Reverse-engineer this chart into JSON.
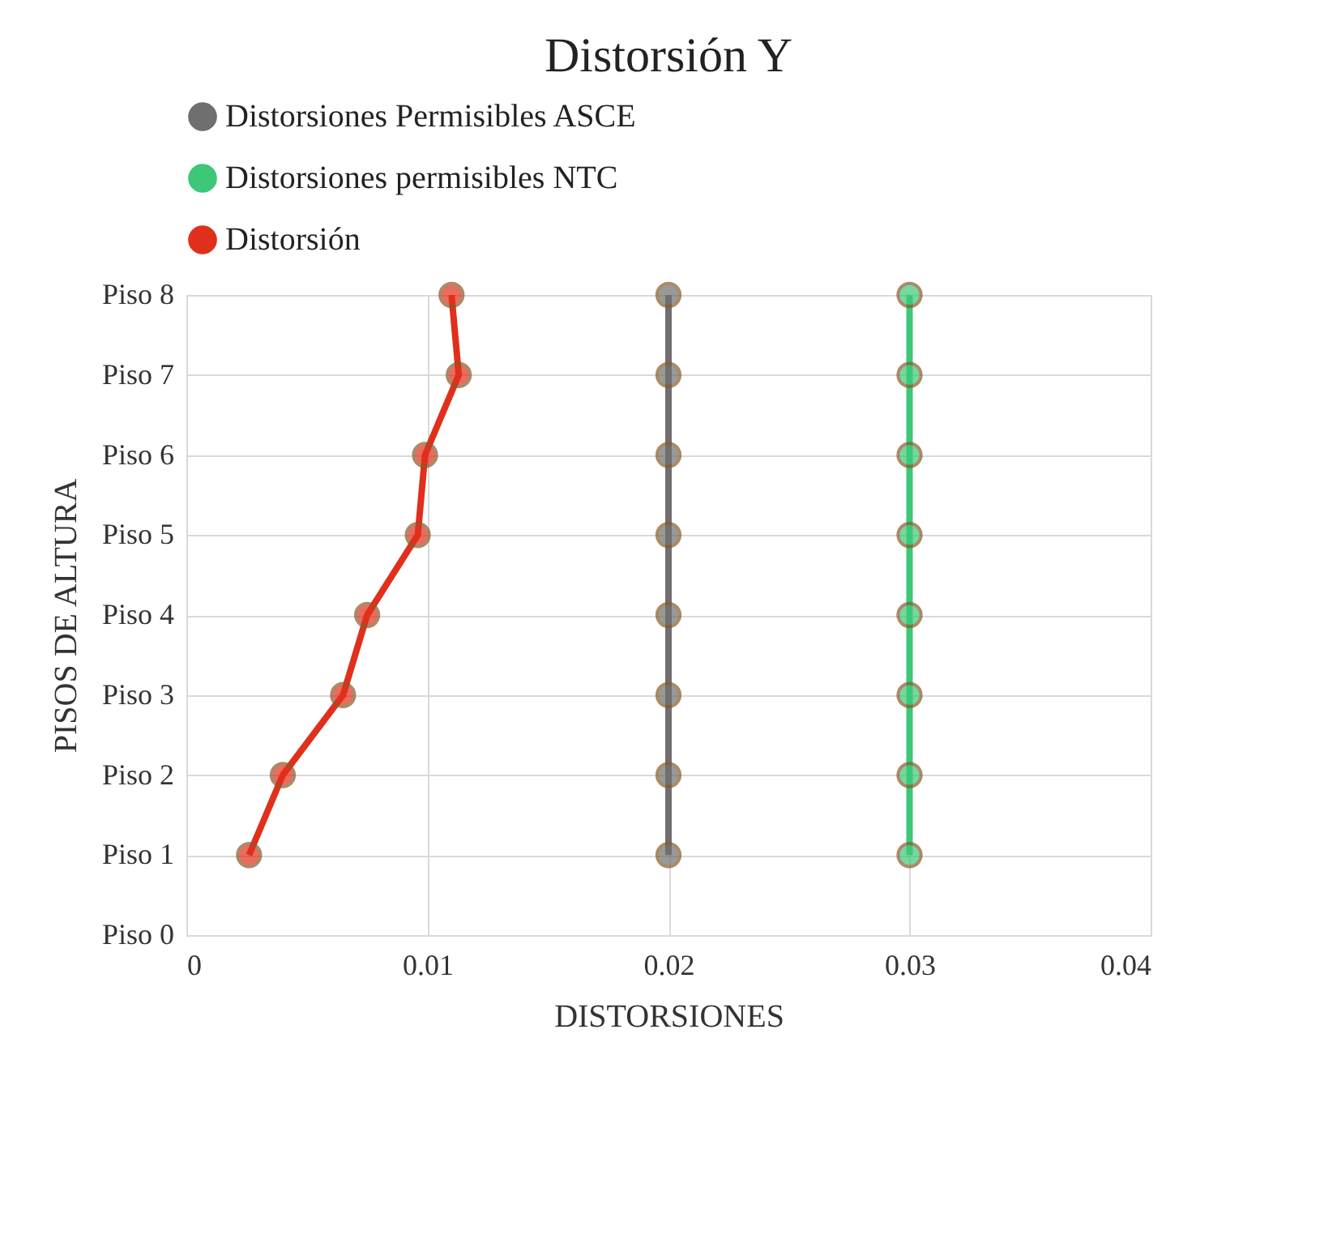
{
  "chart_data": {
    "type": "line",
    "orientation": "horizontal",
    "title": "Distorsión  Y",
    "xlabel": "DISTORSIONES",
    "ylabel": "PISOS DE ALTURA",
    "categories": [
      "Piso 8",
      "Piso 7",
      "Piso 6",
      "Piso 5",
      "Piso 4",
      "Piso 3",
      "Piso 2",
      "Piso 1",
      "Piso 0"
    ],
    "series": [
      {
        "name": "Distorsiones Permisibles ASCE",
        "color": "#6f6f6f",
        "values": [
          0.02,
          0.02,
          0.02,
          0.02,
          0.02,
          0.02,
          0.02,
          0.02,
          null
        ]
      },
      {
        "name": "Distorsiones permisibles NTC",
        "color": "#3cc878",
        "values": [
          0.03,
          0.03,
          0.03,
          0.03,
          0.03,
          0.03,
          0.03,
          0.03,
          null
        ]
      },
      {
        "name": "Distorsión",
        "color": "#e0301c",
        "values": [
          0.011,
          0.0113,
          0.0099,
          0.0096,
          0.0075,
          0.0065,
          0.004,
          0.0026,
          null
        ]
      }
    ],
    "xlim": [
      0,
      0.04
    ],
    "xticks": [
      0,
      0.01,
      0.02,
      0.03,
      0.04
    ],
    "grid": true,
    "legend": "top",
    "marker": "circle",
    "line_style": "solid"
  }
}
